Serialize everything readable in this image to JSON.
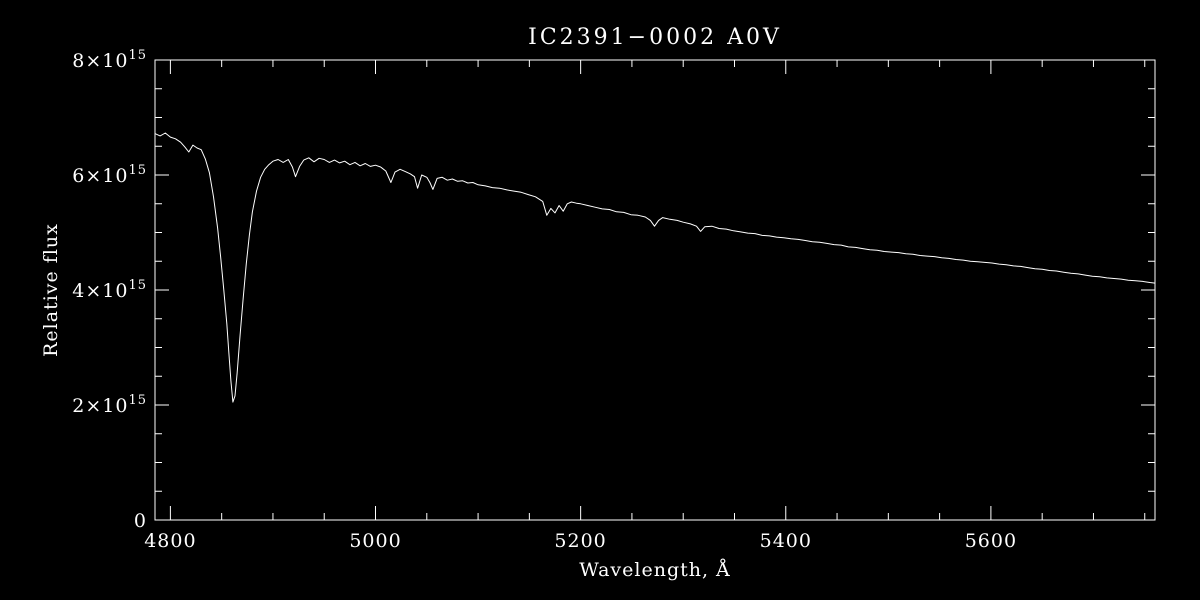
{
  "colors": {
    "background": "#000000",
    "foreground": "#ffffff"
  },
  "chart_data": {
    "type": "line",
    "title": "IC2391−0002  A0V",
    "xlabel": "Wavelength, Å",
    "ylabel": "Relative flux",
    "legend": null,
    "grid": false,
    "xlim": [
      4785,
      5760
    ],
    "ylim": [
      0,
      8000000000000000.0
    ],
    "flux_scale": 1000000000000000.0,
    "x_ticks": [
      4800,
      5000,
      5200,
      5400,
      5600
    ],
    "x_tick_labels": [
      "4800",
      "5000",
      "5200",
      "5400",
      "5600"
    ],
    "x_minor_step": 50,
    "y_ticks": [
      0,
      2000000000000000.0,
      4000000000000000.0,
      6000000000000000.0,
      8000000000000000.0
    ],
    "y_tick_labels": [
      {
        "base": "0",
        "exp": ""
      },
      {
        "base": "2×10",
        "exp": "15"
      },
      {
        "base": "4×10",
        "exp": "15"
      },
      {
        "base": "6×10",
        "exp": "15"
      },
      {
        "base": "8×10",
        "exp": "15"
      }
    ],
    "y_minor_step": 500000000000000.0,
    "series_name": "spectrum",
    "points": [
      [
        4785,
        6.72
      ],
      [
        4790,
        6.68
      ],
      [
        4795,
        6.73
      ],
      [
        4800,
        6.66
      ],
      [
        4805,
        6.63
      ],
      [
        4810,
        6.57
      ],
      [
        4814,
        6.49
      ],
      [
        4818,
        6.4
      ],
      [
        4822,
        6.52
      ],
      [
        4826,
        6.47
      ],
      [
        4830,
        6.44
      ],
      [
        4834,
        6.28
      ],
      [
        4838,
        6.04
      ],
      [
        4842,
        5.62
      ],
      [
        4846,
        5.08
      ],
      [
        4849,
        4.58
      ],
      [
        4852,
        4.02
      ],
      [
        4855,
        3.42
      ],
      [
        4857,
        2.92
      ],
      [
        4859,
        2.42
      ],
      [
        4861,
        2.05
      ],
      [
        4863,
        2.16
      ],
      [
        4865,
        2.55
      ],
      [
        4868,
        3.22
      ],
      [
        4871,
        3.86
      ],
      [
        4874,
        4.46
      ],
      [
        4877,
        4.96
      ],
      [
        4880,
        5.36
      ],
      [
        4884,
        5.72
      ],
      [
        4888,
        5.96
      ],
      [
        4892,
        6.1
      ],
      [
        4896,
        6.18
      ],
      [
        4900,
        6.24
      ],
      [
        4905,
        6.27
      ],
      [
        4910,
        6.22
      ],
      [
        4915,
        6.27
      ],
      [
        4919,
        6.14
      ],
      [
        4922,
        5.97
      ],
      [
        4926,
        6.15
      ],
      [
        4930,
        6.26
      ],
      [
        4935,
        6.3
      ],
      [
        4940,
        6.23
      ],
      [
        4945,
        6.29
      ],
      [
        4950,
        6.27
      ],
      [
        4955,
        6.22
      ],
      [
        4960,
        6.26
      ],
      [
        4965,
        6.21
      ],
      [
        4970,
        6.24
      ],
      [
        4975,
        6.18
      ],
      [
        4980,
        6.22
      ],
      [
        4985,
        6.16
      ],
      [
        4990,
        6.2
      ],
      [
        4995,
        6.15
      ],
      [
        5000,
        6.17
      ],
      [
        5005,
        6.14
      ],
      [
        5010,
        6.07
      ],
      [
        5015,
        5.87
      ],
      [
        5019,
        6.05
      ],
      [
        5024,
        6.1
      ],
      [
        5029,
        6.06
      ],
      [
        5034,
        6.02
      ],
      [
        5038,
        5.97
      ],
      [
        5041,
        5.77
      ],
      [
        5045,
        6.0
      ],
      [
        5050,
        5.96
      ],
      [
        5053,
        5.87
      ],
      [
        5056,
        5.75
      ],
      [
        5060,
        5.94
      ],
      [
        5065,
        5.96
      ],
      [
        5070,
        5.91
      ],
      [
        5075,
        5.93
      ],
      [
        5080,
        5.89
      ],
      [
        5085,
        5.9
      ],
      [
        5090,
        5.86
      ],
      [
        5095,
        5.87
      ],
      [
        5100,
        5.83
      ],
      [
        5107,
        5.81
      ],
      [
        5114,
        5.78
      ],
      [
        5121,
        5.77
      ],
      [
        5128,
        5.74
      ],
      [
        5135,
        5.72
      ],
      [
        5142,
        5.7
      ],
      [
        5149,
        5.66
      ],
      [
        5156,
        5.62
      ],
      [
        5163,
        5.54
      ],
      [
        5167,
        5.3
      ],
      [
        5171,
        5.42
      ],
      [
        5175,
        5.34
      ],
      [
        5179,
        5.47
      ],
      [
        5183,
        5.37
      ],
      [
        5187,
        5.5
      ],
      [
        5191,
        5.53
      ],
      [
        5196,
        5.51
      ],
      [
        5200,
        5.5
      ],
      [
        5207,
        5.47
      ],
      [
        5214,
        5.44
      ],
      [
        5221,
        5.41
      ],
      [
        5228,
        5.4
      ],
      [
        5235,
        5.36
      ],
      [
        5242,
        5.35
      ],
      [
        5249,
        5.31
      ],
      [
        5256,
        5.3
      ],
      [
        5263,
        5.27
      ],
      [
        5268,
        5.21
      ],
      [
        5272,
        5.11
      ],
      [
        5276,
        5.21
      ],
      [
        5280,
        5.26
      ],
      [
        5287,
        5.23
      ],
      [
        5294,
        5.21
      ],
      [
        5300,
        5.18
      ],
      [
        5307,
        5.15
      ],
      [
        5313,
        5.11
      ],
      [
        5317,
        5.02
      ],
      [
        5321,
        5.1
      ],
      [
        5328,
        5.11
      ],
      [
        5335,
        5.07
      ],
      [
        5342,
        5.06
      ],
      [
        5349,
        5.03
      ],
      [
        5356,
        5.01
      ],
      [
        5363,
        4.99
      ],
      [
        5370,
        4.98
      ],
      [
        5377,
        4.95
      ],
      [
        5384,
        4.94
      ],
      [
        5391,
        4.92
      ],
      [
        5398,
        4.91
      ],
      [
        5405,
        4.89
      ],
      [
        5412,
        4.88
      ],
      [
        5419,
        4.86
      ],
      [
        5426,
        4.84
      ],
      [
        5433,
        4.83
      ],
      [
        5440,
        4.81
      ],
      [
        5447,
        4.79
      ],
      [
        5454,
        4.78
      ],
      [
        5461,
        4.75
      ],
      [
        5468,
        4.74
      ],
      [
        5475,
        4.72
      ],
      [
        5482,
        4.7
      ],
      [
        5489,
        4.69
      ],
      [
        5496,
        4.67
      ],
      [
        5503,
        4.66
      ],
      [
        5510,
        4.65
      ],
      [
        5517,
        4.63
      ],
      [
        5524,
        4.62
      ],
      [
        5531,
        4.6
      ],
      [
        5538,
        4.59
      ],
      [
        5545,
        4.58
      ],
      [
        5552,
        4.56
      ],
      [
        5559,
        4.55
      ],
      [
        5566,
        4.53
      ],
      [
        5573,
        4.52
      ],
      [
        5580,
        4.5
      ],
      [
        5587,
        4.49
      ],
      [
        5594,
        4.48
      ],
      [
        5601,
        4.47
      ],
      [
        5608,
        4.45
      ],
      [
        5615,
        4.44
      ],
      [
        5622,
        4.42
      ],
      [
        5629,
        4.41
      ],
      [
        5636,
        4.39
      ],
      [
        5643,
        4.37
      ],
      [
        5650,
        4.36
      ],
      [
        5657,
        4.34
      ],
      [
        5664,
        4.33
      ],
      [
        5671,
        4.31
      ],
      [
        5678,
        4.29
      ],
      [
        5685,
        4.28
      ],
      [
        5692,
        4.26
      ],
      [
        5699,
        4.24
      ],
      [
        5706,
        4.23
      ],
      [
        5713,
        4.21
      ],
      [
        5720,
        4.2
      ],
      [
        5727,
        4.19
      ],
      [
        5734,
        4.17
      ],
      [
        5741,
        4.16
      ],
      [
        5748,
        4.15
      ],
      [
        5755,
        4.13
      ],
      [
        5760,
        4.12
      ]
    ]
  }
}
